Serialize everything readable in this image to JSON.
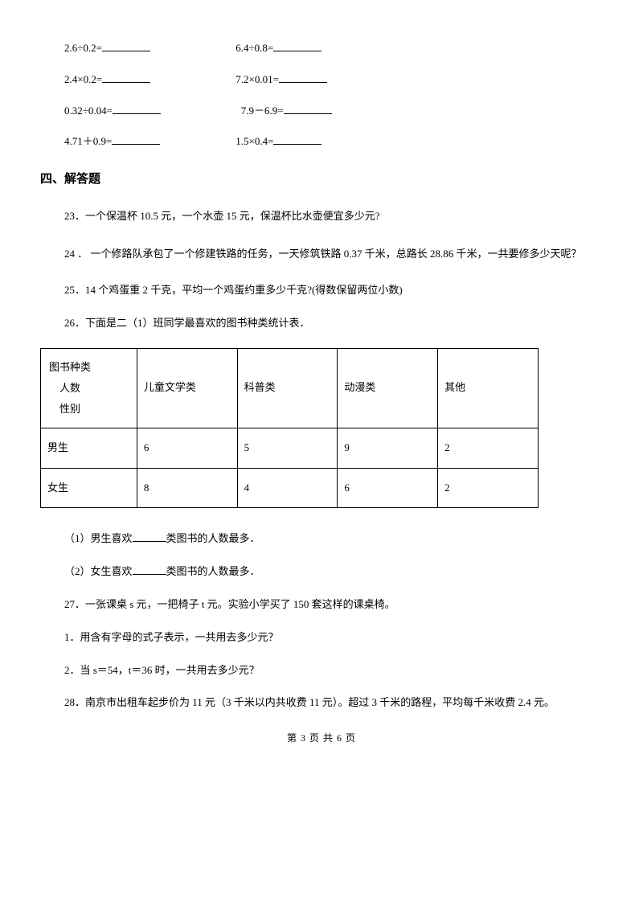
{
  "calc": {
    "r1a": "2.6÷0.2=",
    "r1b": "6.4÷0.8=",
    "r2a": "2.4×0.2=",
    "r2b": "7.2×0.01=",
    "r3a": "0.32÷0.04=",
    "r3b": "7.9－6.9=",
    "r4a": "4.71＋0.9=",
    "r4b": "1.5×0.4="
  },
  "section4": "四、解答题",
  "q23": "23．一个保温杯 10.5 元，一个水壶 15 元，保温杯比水壶便宜多少元?",
  "q24": "24 ． 一个修路队承包了一个修建铁路的任务，一天修筑铁路 0.37 千米，总路长 28.86 千米，一共要修多少天呢？",
  "q25": "25．14 个鸡蛋重 2 千克，平均一个鸡蛋约重多少千克?(得数保留两位小数)",
  "q26": "26．下面是二（1）班同学最喜欢的图书种类统计表．",
  "table": {
    "corner_l1": "图书种类",
    "corner_l2": "人数",
    "corner_l3": "性别",
    "h1": "儿童文学类",
    "h2": "科普类",
    "h3": "动漫类",
    "h4": "其他",
    "row1_label": "男生",
    "r1c1": "6",
    "r1c2": "5",
    "r1c3": "9",
    "r1c4": "2",
    "row2_label": "女生",
    "r2c1": "8",
    "r2c2": "4",
    "r2c3": "6",
    "r2c4": "2"
  },
  "q26_1a": "（1）男生喜欢",
  "q26_1b": "类图书的人数最多．",
  "q26_2a": "（2）女生喜欢",
  "q26_2b": "类图书的人数最多．",
  "q27": "27．一张课桌 s 元，一把椅子 t 元。实验小学买了 150 套这样的课桌椅。",
  "q27_1": "1．用含有字母的式子表示，一共用去多少元？",
  "q27_2": "2．当 s＝54，t＝36 时，一共用去多少元？",
  "q28": "28．南京市出租车起步价为 11 元（3 千米以内共收费 11 元）。超过 3 千米的路程，平均每千米收费 2.4 元。",
  "footer": "第 3 页 共 6 页"
}
